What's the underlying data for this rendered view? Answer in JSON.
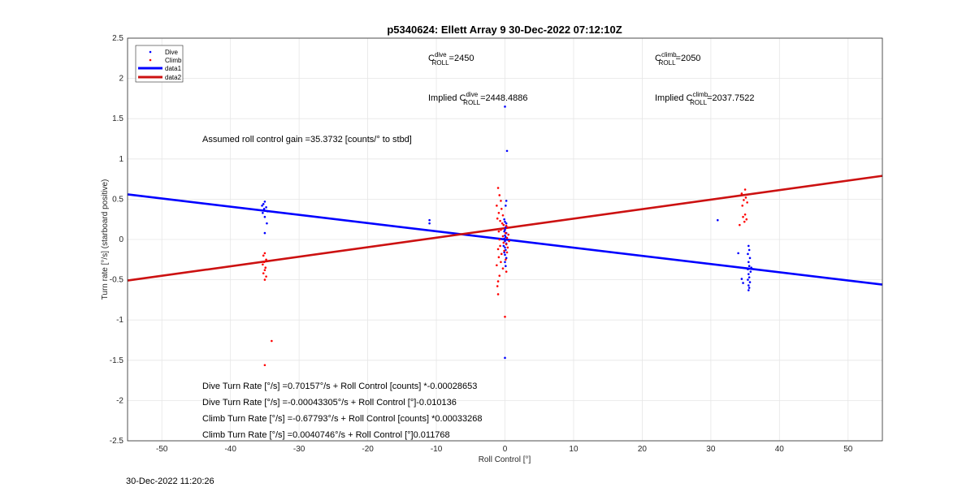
{
  "chart_data": {
    "type": "scatter",
    "title": "p5340624: Ellett Array 9 30-Dec-2022 07:12:10Z",
    "xlabel": "Roll Control [°]",
    "ylabel": "Turn rate [°/s] (starboard positive)",
    "xlim": [
      -55,
      55
    ],
    "ylim": [
      -2.5,
      2.5
    ],
    "xticks": [
      -50,
      -40,
      -30,
      -20,
      -10,
      0,
      10,
      20,
      30,
      40,
      50
    ],
    "yticks": [
      -2.5,
      -2,
      -1.5,
      -1,
      -0.5,
      0,
      0.5,
      1,
      1.5,
      2,
      2.5
    ],
    "xtick_labels": [
      "-50",
      "-40",
      "-30",
      "-20",
      "-10",
      "0",
      "10",
      "20",
      "30",
      "40",
      "50"
    ],
    "ytick_labels": [
      "-2.5",
      "-2",
      "-1.5",
      "-1",
      "-0.5",
      "0",
      "0.5",
      "1",
      "1.5",
      "2",
      "2.5"
    ],
    "grid": true,
    "legend_position": "top-left",
    "series": [
      {
        "name": "Dive",
        "kind": "points",
        "color": "#0000ff",
        "points": [
          [
            -35,
            0.47
          ],
          [
            -35.2,
            0.44
          ],
          [
            -35.4,
            0.42
          ],
          [
            -34.8,
            0.4
          ],
          [
            -35.1,
            0.38
          ],
          [
            -34.6,
            0.35
          ],
          [
            -35.3,
            0.33
          ],
          [
            -35,
            0.28
          ],
          [
            -34.7,
            0.2
          ],
          [
            -35,
            0.08
          ],
          [
            -11,
            0.24
          ],
          [
            -11,
            0.2
          ],
          [
            0,
            1.65
          ],
          [
            0.3,
            1.1
          ],
          [
            0.2,
            0.48
          ],
          [
            0.1,
            0.42
          ],
          [
            -0.1,
            0.25
          ],
          [
            0,
            0.22
          ],
          [
            0.2,
            0.2
          ],
          [
            -0.2,
            0.18
          ],
          [
            0.1,
            0.15
          ],
          [
            0,
            0.12
          ],
          [
            -0.1,
            0.1
          ],
          [
            0.2,
            0.08
          ],
          [
            0,
            0.05
          ],
          [
            0.1,
            0.03
          ],
          [
            -0.1,
            0.01
          ],
          [
            0,
            -0.02
          ],
          [
            0.2,
            -0.05
          ],
          [
            -0.2,
            -0.08
          ],
          [
            0,
            -0.1
          ],
          [
            0.1,
            -0.13
          ],
          [
            -0.1,
            -0.16
          ],
          [
            0,
            -0.19
          ],
          [
            0.2,
            -0.23
          ],
          [
            0,
            -0.28
          ],
          [
            0.1,
            -0.33
          ],
          [
            0,
            -1.47
          ],
          [
            31,
            0.24
          ],
          [
            34,
            -0.17
          ],
          [
            35.5,
            -0.08
          ],
          [
            35.6,
            -0.13
          ],
          [
            35.4,
            -0.18
          ],
          [
            35.7,
            -0.23
          ],
          [
            35.5,
            -0.28
          ],
          [
            35.6,
            -0.33
          ],
          [
            35.4,
            -0.37
          ],
          [
            35.8,
            -0.4
          ],
          [
            35.5,
            -0.43
          ],
          [
            35.6,
            -0.47
          ],
          [
            35.4,
            -0.5
          ],
          [
            35.7,
            -0.53
          ],
          [
            35.5,
            -0.57
          ],
          [
            35.6,
            -0.6
          ],
          [
            35.5,
            -0.63
          ],
          [
            34.5,
            -0.49
          ],
          [
            34.7,
            -0.54
          ],
          [
            35.9,
            -0.35
          ]
        ]
      },
      {
        "name": "Climb",
        "kind": "points",
        "color": "#ff0000",
        "points": [
          [
            -35,
            -0.17
          ],
          [
            -35.2,
            -0.2
          ],
          [
            -34.8,
            -0.25
          ],
          [
            -35.1,
            -0.28
          ],
          [
            -35.3,
            -0.31
          ],
          [
            -34.9,
            -0.35
          ],
          [
            -35,
            -0.38
          ],
          [
            -35.2,
            -0.42
          ],
          [
            -34.8,
            -0.46
          ],
          [
            -35,
            -0.5
          ],
          [
            -34,
            -1.26
          ],
          [
            -35,
            -1.56
          ],
          [
            -1,
            0.64
          ],
          [
            -0.8,
            0.55
          ],
          [
            -0.6,
            0.48
          ],
          [
            -1.2,
            0.42
          ],
          [
            -0.5,
            0.38
          ],
          [
            -0.9,
            0.33
          ],
          [
            -0.3,
            0.3
          ],
          [
            -1.1,
            0.26
          ],
          [
            -0.7,
            0.23
          ],
          [
            -0.4,
            0.2
          ],
          [
            -0.2,
            0.18
          ],
          [
            0.2,
            0.17
          ],
          [
            0.4,
            0.15
          ],
          [
            -0.6,
            0.12
          ],
          [
            -0.9,
            0.1
          ],
          [
            0.1,
            0.08
          ],
          [
            0.5,
            0.06
          ],
          [
            -0.3,
            0.04
          ],
          [
            0.3,
            0.02
          ],
          [
            -0.8,
            0.0
          ],
          [
            0.6,
            -0.02
          ],
          [
            -0.2,
            -0.04
          ],
          [
            0.2,
            -0.06
          ],
          [
            -0.7,
            -0.08
          ],
          [
            0.4,
            -0.1
          ],
          [
            -1.0,
            -0.12
          ],
          [
            -0.1,
            -0.14
          ],
          [
            0.3,
            -0.16
          ],
          [
            -0.5,
            -0.18
          ],
          [
            -0.9,
            -0.22
          ],
          [
            0.1,
            -0.25
          ],
          [
            -0.6,
            -0.28
          ],
          [
            -1.2,
            -0.32
          ],
          [
            -0.3,
            -0.36
          ],
          [
            0.2,
            -0.4
          ],
          [
            -0.8,
            -0.45
          ],
          [
            -1.0,
            -0.52
          ],
          [
            -1.1,
            -0.58
          ],
          [
            -1.0,
            -0.68
          ],
          [
            0,
            -0.96
          ],
          [
            35,
            0.62
          ],
          [
            34.5,
            0.57
          ],
          [
            35.1,
            0.52
          ],
          [
            34.8,
            0.49
          ],
          [
            35.3,
            0.46
          ],
          [
            34.6,
            0.42
          ],
          [
            35,
            0.31
          ],
          [
            34.7,
            0.28
          ],
          [
            35.2,
            0.25
          ],
          [
            34.9,
            0.22
          ],
          [
            34.2,
            0.18
          ]
        ]
      },
      {
        "name": "data1",
        "kind": "line",
        "color": "#0000ff",
        "points": [
          [
            -55,
            0.56
          ],
          [
            55,
            -0.56
          ]
        ]
      },
      {
        "name": "data2",
        "kind": "line",
        "color": "#ff0000",
        "points": [
          [
            -55,
            -0.51
          ],
          [
            55,
            0.79
          ]
        ]
      }
    ],
    "annotations": {
      "c_dive": {
        "base": "C",
        "sup": "dive",
        "sub": "ROLL",
        "value": "=2450"
      },
      "c_climb": {
        "base": "C",
        "sup": "climb",
        "sub": "ROLL",
        "value": "=2050"
      },
      "implied_dive": {
        "prefix": "Implied ",
        "base": "C",
        "sup": "dive",
        "sub": "ROLL",
        "value": "=2448.4886"
      },
      "implied_climb": {
        "prefix": "Implied ",
        "base": "C",
        "sup": "climb",
        "sub": "ROLL",
        "value": "=2037.7522"
      },
      "gain": "Assumed roll control gain =35.3732 [counts/° to stbd]",
      "equations": [
        "Dive Turn Rate [°/s] =0.70157°/s + Roll Control [counts] *-0.00028653",
        "Dive Turn Rate [°/s] =-0.00043305°/s + Roll Control [°]-0.010136",
        "Climb Turn Rate [°/s] =-0.67793°/s + Roll Control [counts] *0.00033268",
        "Climb Turn Rate [°/s] =0.0040746°/s + Roll Control [°]0.011768"
      ]
    }
  },
  "footer": {
    "timestamp": "30-Dec-2022 11:20:26"
  }
}
